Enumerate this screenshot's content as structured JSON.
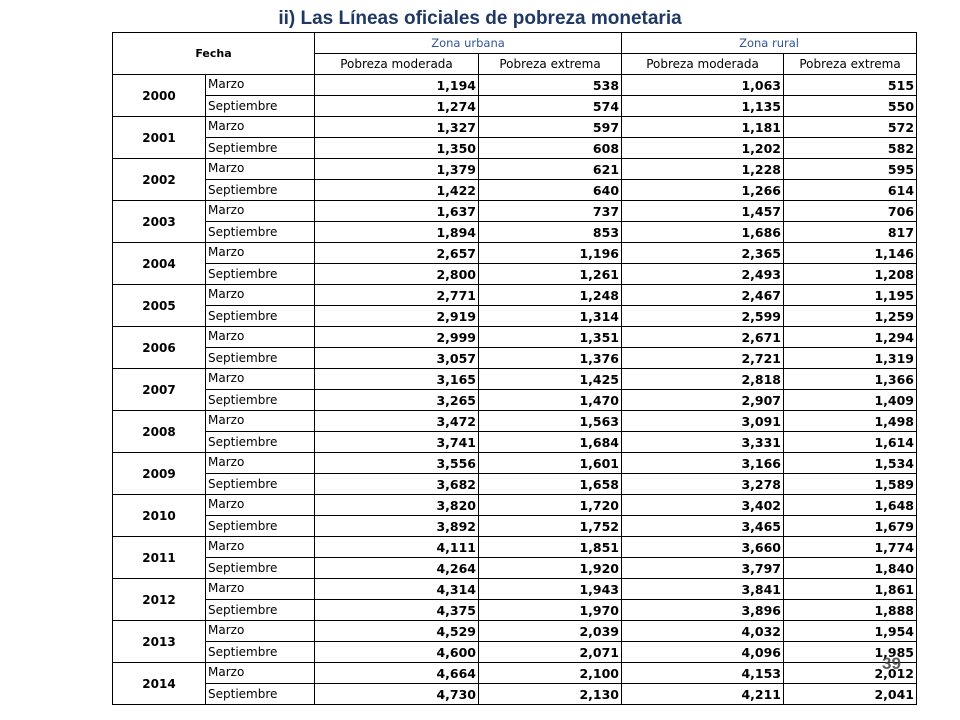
{
  "title": "ii) Las Líneas oficiales de pobreza monetaria",
  "table": {
    "header": {
      "fecha": "Fecha",
      "zona_urbana": "Zona urbana",
      "zona_rural": "Zona rural",
      "subheaders": [
        "Pobreza moderada",
        "Pobreza extrema",
        "Pobreza moderada",
        "Pobreza extrema"
      ]
    },
    "rows": [
      {
        "year": "2000",
        "entries": [
          {
            "month": "Marzo",
            "values": [
              "1,194",
              "538",
              "1,063",
              "515"
            ]
          },
          {
            "month": "Septiembre",
            "values": [
              "1,274",
              "574",
              "1,135",
              "550"
            ]
          }
        ]
      },
      {
        "year": "2001",
        "entries": [
          {
            "month": "Marzo",
            "values": [
              "1,327",
              "597",
              "1,181",
              "572"
            ]
          },
          {
            "month": "Septiembre",
            "values": [
              "1,350",
              "608",
              "1,202",
              "582"
            ]
          }
        ]
      },
      {
        "year": "2002",
        "entries": [
          {
            "month": "Marzo",
            "values": [
              "1,379",
              "621",
              "1,228",
              "595"
            ]
          },
          {
            "month": "Septiembre",
            "values": [
              "1,422",
              "640",
              "1,266",
              "614"
            ]
          }
        ]
      },
      {
        "year": "2003",
        "entries": [
          {
            "month": "Marzo",
            "values": [
              "1,637",
              "737",
              "1,457",
              "706"
            ]
          },
          {
            "month": "Septiembre",
            "values": [
              "1,894",
              "853",
              "1,686",
              "817"
            ]
          }
        ]
      },
      {
        "year": "2004",
        "entries": [
          {
            "month": "Marzo",
            "values": [
              "2,657",
              "1,196",
              "2,365",
              "1,146"
            ]
          },
          {
            "month": "Septiembre",
            "values": [
              "2,800",
              "1,261",
              "2,493",
              "1,208"
            ]
          }
        ]
      },
      {
        "year": "2005",
        "entries": [
          {
            "month": "Marzo",
            "values": [
              "2,771",
              "1,248",
              "2,467",
              "1,195"
            ]
          },
          {
            "month": "Septiembre",
            "values": [
              "2,919",
              "1,314",
              "2,599",
              "1,259"
            ]
          }
        ]
      },
      {
        "year": "2006",
        "entries": [
          {
            "month": "Marzo",
            "values": [
              "2,999",
              "1,351",
              "2,671",
              "1,294"
            ]
          },
          {
            "month": "Septiembre",
            "values": [
              "3,057",
              "1,376",
              "2,721",
              "1,319"
            ]
          }
        ]
      },
      {
        "year": "2007",
        "entries": [
          {
            "month": "Marzo",
            "values": [
              "3,165",
              "1,425",
              "2,818",
              "1,366"
            ]
          },
          {
            "month": "Septiembre",
            "values": [
              "3,265",
              "1,470",
              "2,907",
              "1,409"
            ]
          }
        ]
      },
      {
        "year": "2008",
        "entries": [
          {
            "month": "Marzo",
            "values": [
              "3,472",
              "1,563",
              "3,091",
              "1,498"
            ]
          },
          {
            "month": "Septiembre",
            "values": [
              "3,741",
              "1,684",
              "3,331",
              "1,614"
            ]
          }
        ]
      },
      {
        "year": "2009",
        "entries": [
          {
            "month": "Marzo",
            "values": [
              "3,556",
              "1,601",
              "3,166",
              "1,534"
            ]
          },
          {
            "month": "Septiembre",
            "values": [
              "3,682",
              "1,658",
              "3,278",
              "1,589"
            ]
          }
        ]
      },
      {
        "year": "2010",
        "entries": [
          {
            "month": "Marzo",
            "values": [
              "3,820",
              "1,720",
              "3,402",
              "1,648"
            ]
          },
          {
            "month": "Septiembre",
            "values": [
              "3,892",
              "1,752",
              "3,465",
              "1,679"
            ]
          }
        ]
      },
      {
        "year": "2011",
        "entries": [
          {
            "month": "Marzo",
            "values": [
              "4,111",
              "1,851",
              "3,660",
              "1,774"
            ]
          },
          {
            "month": "Septiembre",
            "values": [
              "4,264",
              "1,920",
              "3,797",
              "1,840"
            ]
          }
        ]
      },
      {
        "year": "2012",
        "entries": [
          {
            "month": "Marzo",
            "values": [
              "4,314",
              "1,943",
              "3,841",
              "1,861"
            ]
          },
          {
            "month": "Septiembre",
            "values": [
              "4,375",
              "1,970",
              "3,896",
              "1,888"
            ]
          }
        ]
      },
      {
        "year": "2013",
        "entries": [
          {
            "month": "Marzo",
            "values": [
              "4,529",
              "2,039",
              "4,032",
              "1,954"
            ]
          },
          {
            "month": "Septiembre",
            "values": [
              "4,600",
              "2,071",
              "4,096",
              "1,985"
            ]
          }
        ]
      },
      {
        "year": "2014",
        "entries": [
          {
            "month": "Marzo",
            "values": [
              "4,664",
              "2,100",
              "4,153",
              "2,012"
            ]
          },
          {
            "month": "Septiembre",
            "values": [
              "4,730",
              "2,130",
              "4,211",
              "2,041"
            ]
          }
        ]
      }
    ]
  },
  "slide_number": "39",
  "colors": {
    "title": "#1f3864",
    "zone_header": "#2f5597",
    "border": "#000000"
  }
}
